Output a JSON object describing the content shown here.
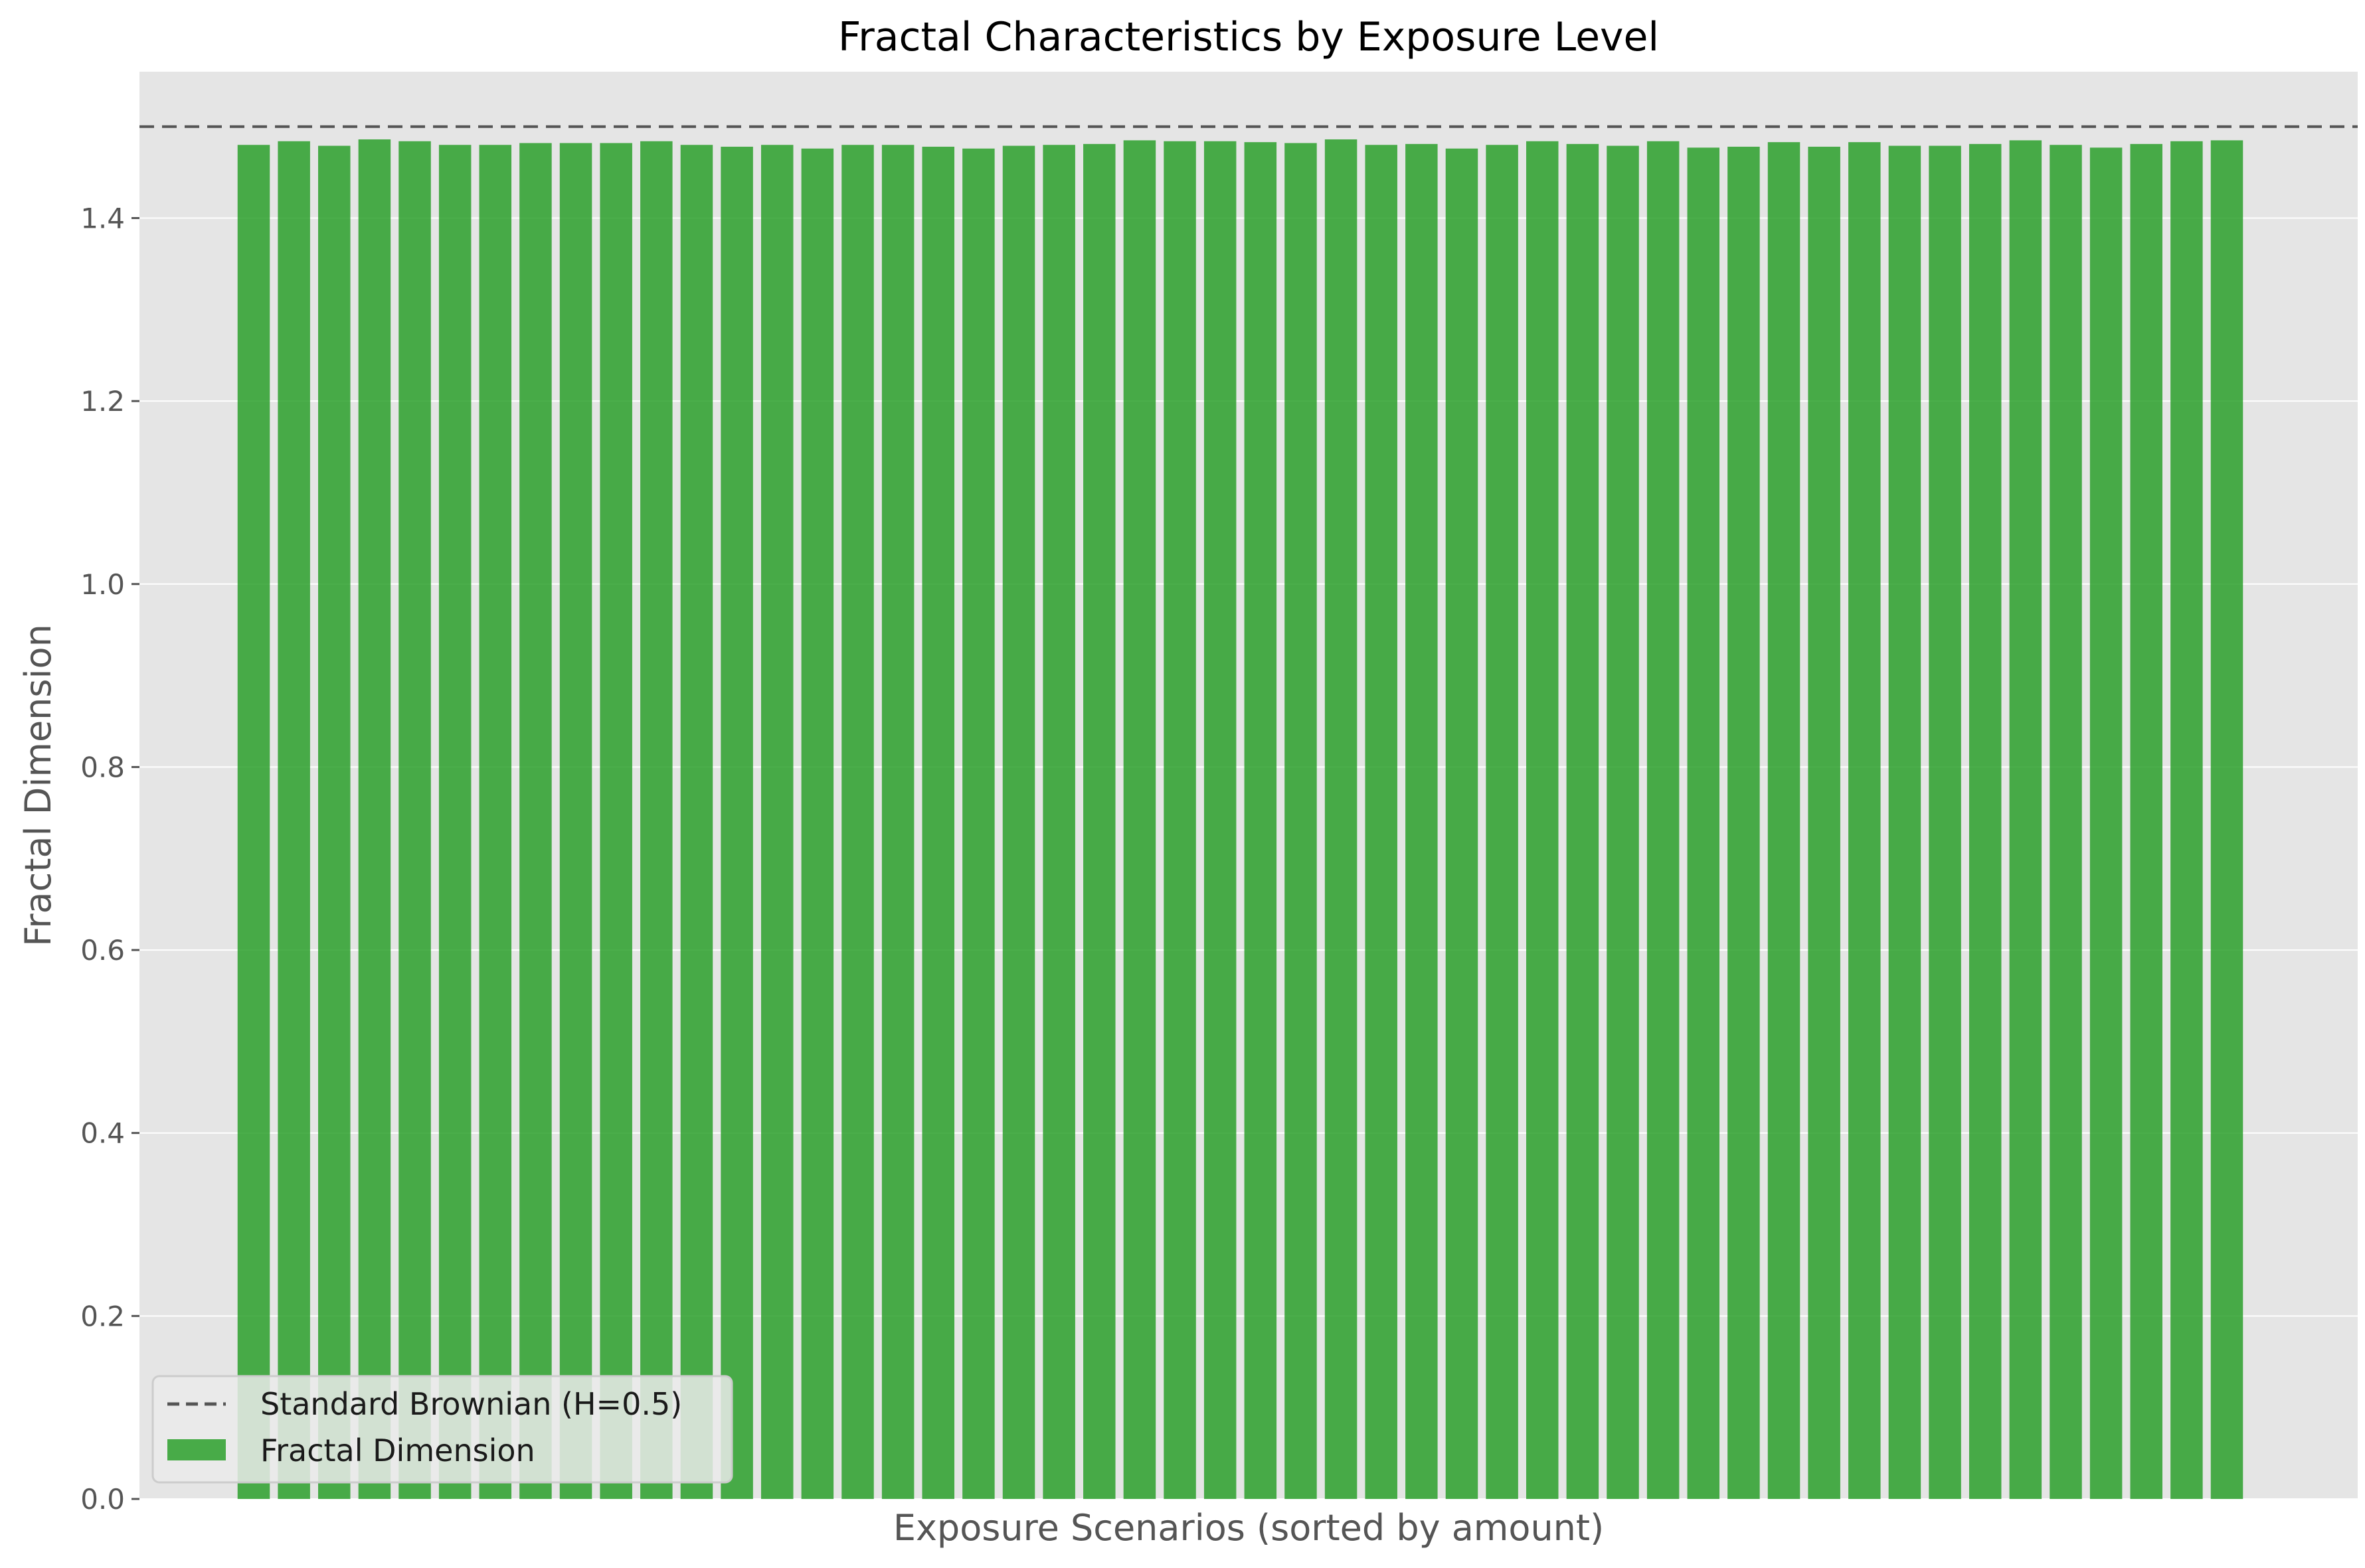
{
  "chart_data": {
    "type": "bar",
    "title": "Fractal Characteristics by Exposure Level",
    "xlabel": "Exposure Scenarios (sorted by amount)",
    "ylabel": "Fractal Dimension",
    "ylim": [
      0,
      1.56
    ],
    "yticks": [
      "0.0",
      "0.2",
      "0.4",
      "0.6",
      "0.8",
      "1.0",
      "1.2",
      "1.4"
    ],
    "grid": true,
    "legend_position": "lower-left",
    "series": [
      {
        "name": "Fractal Dimension",
        "color": "#2ca02c",
        "values": [
          1.48,
          1.484,
          1.479,
          1.486,
          1.484,
          1.48,
          1.48,
          1.482,
          1.482,
          1.482,
          1.484,
          1.48,
          1.478,
          1.48,
          1.476,
          1.48,
          1.48,
          1.478,
          1.476,
          1.479,
          1.48,
          1.481,
          1.485,
          1.484,
          1.484,
          1.483,
          1.482,
          1.486,
          1.48,
          1.481,
          1.476,
          1.48,
          1.484,
          1.481,
          1.479,
          1.484,
          1.477,
          1.478,
          1.483,
          1.478,
          1.483,
          1.479,
          1.479,
          1.481,
          1.485,
          1.48,
          1.477,
          1.481,
          1.484,
          1.485
        ]
      }
    ],
    "reference_lines": [
      {
        "name": "Standard Brownian (H=0.5)",
        "y": 1.5,
        "color": "#555555",
        "style": "dashed"
      }
    ]
  }
}
